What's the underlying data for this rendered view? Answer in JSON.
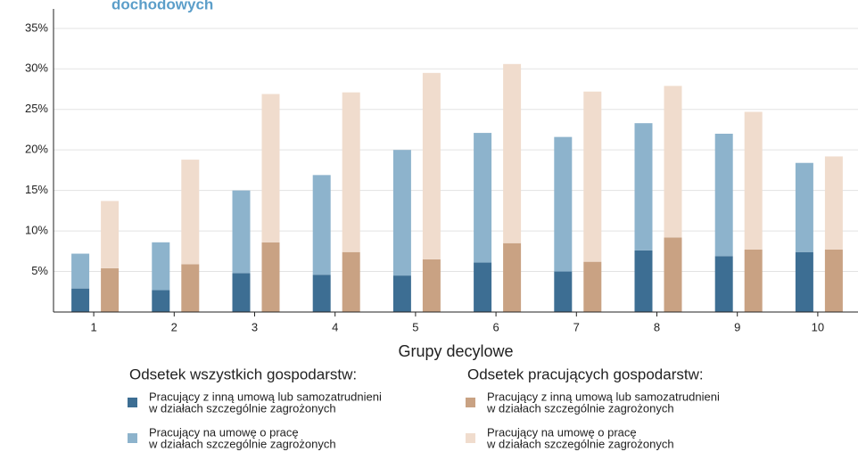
{
  "chart_data": {
    "type": "bar",
    "stacked": true,
    "title": "dochodowych",
    "x_label": "Grupy decylowe",
    "categories": [
      "1",
      "2",
      "3",
      "4",
      "5",
      "6",
      "7",
      "8",
      "9",
      "10"
    ],
    "ylim": [
      0,
      37.4
    ],
    "yticks": [
      {
        "value": 5,
        "label": "5%"
      },
      {
        "value": 10,
        "label": "10%"
      },
      {
        "value": 15,
        "label": "15%"
      },
      {
        "value": 20,
        "label": "20%"
      },
      {
        "value": 25,
        "label": "25%"
      },
      {
        "value": 30,
        "label": "30%"
      },
      {
        "value": 35,
        "label": "35%"
      }
    ],
    "grid": true,
    "stacks": [
      {
        "name": "Odsetek wszystkich gospodarstw:",
        "series": [
          {
            "name": [
              "Pracujący z inną umową lub samozatrudnieni",
              "w działach szczególnie zagrożonych"
            ],
            "color": "#3d6e93",
            "values": [
              2.9,
              2.7,
              4.8,
              4.6,
              4.5,
              6.1,
              5.0,
              7.6,
              6.9,
              7.4
            ]
          },
          {
            "name": [
              "Pracujący na umowę o pracę",
              "w działach szczególnie zagrożonych"
            ],
            "color": "#8db3cc",
            "values": [
              4.3,
              5.9,
              10.2,
              12.3,
              15.5,
              16.0,
              16.6,
              15.7,
              15.1,
              11.0
            ]
          }
        ]
      },
      {
        "name": "Odsetek pracujących gospodarstw:",
        "series": [
          {
            "name": [
              "Pracujący z inną umową lub samozatrudnieni",
              "w działach szczególnie zagrożonych"
            ],
            "color": "#c9a283",
            "values": [
              5.4,
              5.9,
              8.6,
              7.4,
              6.5,
              8.5,
              6.2,
              9.2,
              7.7,
              7.7
            ]
          },
          {
            "name": [
              "Pracujący na umowę o pracę",
              "w działach szczególnie zagrożonych"
            ],
            "color": "#f0dccd",
            "values": [
              8.3,
              12.9,
              18.3,
              19.7,
              23.0,
              22.1,
              21.0,
              18.7,
              17.0,
              11.5
            ]
          }
        ]
      }
    ]
  }
}
